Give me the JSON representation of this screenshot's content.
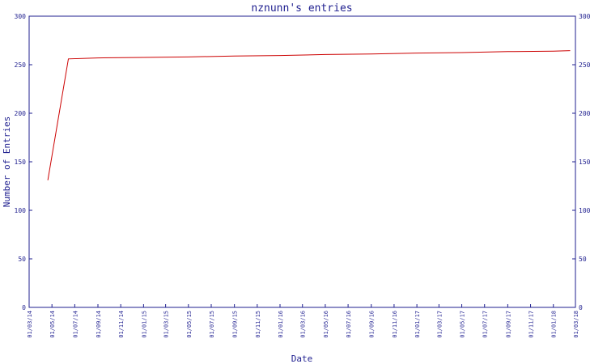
{
  "chart_data": {
    "type": "line",
    "title": "nznunn's entries",
    "xlabel": "Date",
    "ylabel": "Number of Entries",
    "ylim": [
      0,
      300
    ],
    "yticks": [
      0,
      50,
      100,
      150,
      200,
      250,
      300
    ],
    "xticks": [
      "01/03/14",
      "01/05/14",
      "01/07/14",
      "01/09/14",
      "01/11/14",
      "01/01/15",
      "01/03/15",
      "01/05/15",
      "01/07/15",
      "01/09/15",
      "01/11/15",
      "01/01/16",
      "01/03/16",
      "01/05/16",
      "01/07/16",
      "01/09/16",
      "01/11/16",
      "01/01/17",
      "01/03/17",
      "01/05/17",
      "01/07/17",
      "01/09/17",
      "01/11/17",
      "01/01/18",
      "01/03/18"
    ],
    "grid": false,
    "right_axis": true,
    "series": [
      {
        "color": "#cc0000",
        "points": [
          {
            "x": "2014-04-20",
            "y": 131
          },
          {
            "x": "2014-06-14",
            "y": 256
          },
          {
            "x": "2014-09-01",
            "y": 257
          },
          {
            "x": "2015-01-01",
            "y": 257.5
          },
          {
            "x": "2015-05-01",
            "y": 258
          },
          {
            "x": "2015-09-01",
            "y": 259
          },
          {
            "x": "2016-01-01",
            "y": 259.5
          },
          {
            "x": "2016-05-01",
            "y": 260.5
          },
          {
            "x": "2016-09-01",
            "y": 261
          },
          {
            "x": "2017-01-01",
            "y": 262
          },
          {
            "x": "2017-05-01",
            "y": 262.5
          },
          {
            "x": "2017-09-01",
            "y": 263.5
          },
          {
            "x": "2018-01-01",
            "y": 264
          },
          {
            "x": "2018-02-15",
            "y": 264.5
          }
        ]
      }
    ],
    "colors": {
      "axis": "#1f1f8f",
      "line": "#cc0000"
    }
  }
}
